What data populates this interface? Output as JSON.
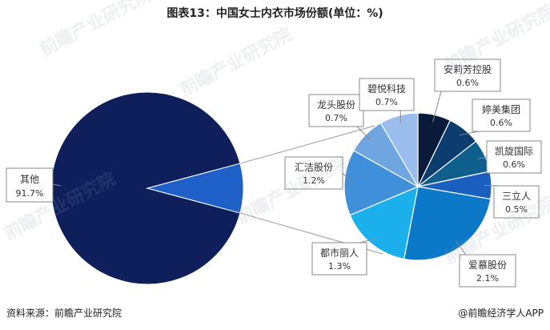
{
  "title": "图表13：中国女士内衣市场份额(单位：%)",
  "source": "资料来源：前瞻产业研究院",
  "brand": "@前瞻经济学人APP",
  "watermark": "前瞻产业研究院",
  "chart_data": {
    "type": "pie",
    "title": "图表13：中国女士内衣市场份额(单位：%)",
    "main_pie": [
      {
        "name": "其他",
        "value": 91.7,
        "label": "91.7%",
        "color": "#0e1f5b"
      }
    ],
    "exploded_total": 8.3,
    "exploded_color": "#1e5fc8",
    "breakdown_pie": [
      {
        "name": "安莉芳控股",
        "value": 0.6,
        "label": "0.6%",
        "color": "#0a1a3a"
      },
      {
        "name": "婷美集团",
        "value": 0.6,
        "label": "0.6%",
        "color": "#0d3d6e"
      },
      {
        "name": "凯旋国际",
        "value": 0.6,
        "label": "0.6%",
        "color": "#0f5f8c"
      },
      {
        "name": "三立人",
        "value": 0.5,
        "label": "0.5%",
        "color": "#1a5fc0"
      },
      {
        "name": "爱慕股份",
        "value": 2.1,
        "label": "2.1%",
        "color": "#0b79c8"
      },
      {
        "name": "都市丽人",
        "value": 1.3,
        "label": "1.3%",
        "color": "#1bb0ec"
      },
      {
        "name": "汇洁股份",
        "value": 1.2,
        "label": "1.2%",
        "color": "#3f8fda"
      },
      {
        "name": "龙头股份",
        "value": 0.7,
        "label": "0.7%",
        "color": "#6fa6e2"
      },
      {
        "name": "碧悦科技",
        "value": 0.7,
        "label": "0.7%",
        "color": "#9bbdee"
      }
    ],
    "legend": "none"
  }
}
